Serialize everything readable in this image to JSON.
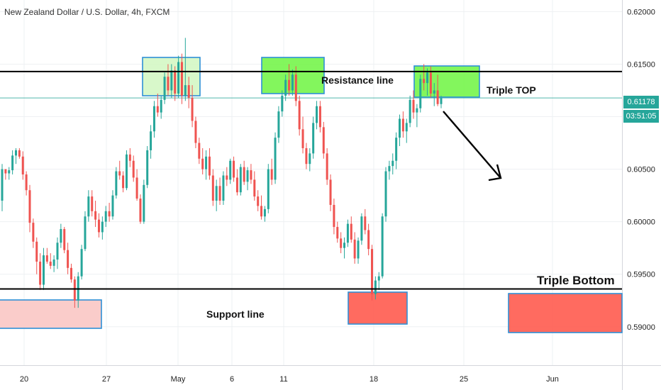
{
  "header": {
    "title": "New Zealand Dollar / U.S. Dollar, 4h, FXCM"
  },
  "price_tag": {
    "value": "0.61178",
    "countdown": "03:51:05"
  },
  "annotations": {
    "resistance": "Resistance line",
    "triple_top": "Triple TOP",
    "triple_bottom": "Triple Bottom",
    "support": "Support line"
  },
  "colors": {
    "up": "#26a69a",
    "down": "#ef5350",
    "grid": "#eef0f3",
    "green_box": "#76f54b",
    "light_green_box": "#d4f7c4",
    "red_box": "#ff5b4f",
    "pink_box": "#f9c7c4",
    "box_border": "#2e8fd6"
  },
  "chart_data": {
    "type": "candlestick",
    "title": "New Zealand Dollar / U.S. Dollar, 4h, FXCM",
    "ylim": [
      0.5885,
      0.6205
    ],
    "y_ticks": [
      "0.62000",
      "0.61500",
      "0.61000",
      "0.60500",
      "0.60000",
      "0.59500",
      "0.59000"
    ],
    "x_ticks": [
      "20",
      "27",
      "May",
      "6",
      "11",
      "18",
      "25",
      "Jun"
    ],
    "resistance_level": 0.6143,
    "support_level": 0.5936,
    "last_price": 0.61178,
    "candles": [
      [
        0.602,
        0.6055,
        0.601,
        0.605
      ],
      [
        0.605,
        0.605,
        0.604,
        0.6046
      ],
      [
        0.6046,
        0.6052,
        0.604,
        0.6049
      ],
      [
        0.6049,
        0.6068,
        0.6045,
        0.6063
      ],
      [
        0.6063,
        0.607,
        0.6055,
        0.6068
      ],
      [
        0.6068,
        0.607,
        0.606,
        0.6062
      ],
      [
        0.6062,
        0.6067,
        0.604,
        0.6045
      ],
      [
        0.6045,
        0.6048,
        0.6025,
        0.603
      ],
      [
        0.603,
        0.6035,
        0.599,
        0.5999
      ],
      [
        0.5999,
        0.6003,
        0.5975,
        0.5981
      ],
      [
        0.5981,
        0.5985,
        0.595,
        0.5962
      ],
      [
        0.5962,
        0.597,
        0.5935,
        0.594
      ],
      [
        0.594,
        0.5975,
        0.5935,
        0.5968
      ],
      [
        0.5968,
        0.5975,
        0.596,
        0.5962
      ],
      [
        0.5962,
        0.597,
        0.5955,
        0.5958
      ],
      [
        0.5958,
        0.5968,
        0.5952,
        0.5964
      ],
      [
        0.5964,
        0.5985,
        0.5955,
        0.598
      ],
      [
        0.598,
        0.5998,
        0.5975,
        0.5993
      ],
      [
        0.5993,
        0.5995,
        0.597,
        0.5973
      ],
      [
        0.5973,
        0.598,
        0.595,
        0.5956
      ],
      [
        0.5956,
        0.596,
        0.5942,
        0.5945
      ],
      [
        0.5945,
        0.5948,
        0.5918,
        0.5925
      ],
      [
        0.5925,
        0.5952,
        0.5918,
        0.5948
      ],
      [
        0.5948,
        0.5978,
        0.5945,
        0.5974
      ],
      [
        0.5974,
        0.601,
        0.5972,
        0.6005
      ],
      [
        0.6005,
        0.603,
        0.6,
        0.6024
      ],
      [
        0.6024,
        0.603,
        0.6005,
        0.601
      ],
      [
        0.601,
        0.602,
        0.5995,
        0.6002
      ],
      [
        0.6002,
        0.6008,
        0.5985,
        0.599
      ],
      [
        0.599,
        0.6005,
        0.5983,
        0.6
      ],
      [
        0.6,
        0.6015,
        0.5995,
        0.601
      ],
      [
        0.601,
        0.6018,
        0.6,
        0.6005
      ],
      [
        0.6005,
        0.603,
        0.6002,
        0.6025
      ],
      [
        0.6025,
        0.6052,
        0.6022,
        0.6048
      ],
      [
        0.6048,
        0.6058,
        0.604,
        0.6044
      ],
      [
        0.6044,
        0.6048,
        0.6028,
        0.6032
      ],
      [
        0.6032,
        0.6068,
        0.603,
        0.6064
      ],
      [
        0.6064,
        0.607,
        0.6052,
        0.6058
      ],
      [
        0.6058,
        0.6063,
        0.6038,
        0.6042
      ],
      [
        0.6042,
        0.605,
        0.602,
        0.6022
      ],
      [
        0.6022,
        0.6026,
        0.5998,
        0.6
      ],
      [
        0.6,
        0.604,
        0.5998,
        0.6035
      ],
      [
        0.6035,
        0.6072,
        0.6032,
        0.6068
      ],
      [
        0.6068,
        0.6092,
        0.606,
        0.6086
      ],
      [
        0.6086,
        0.6115,
        0.608,
        0.611
      ],
      [
        0.611,
        0.6122,
        0.61,
        0.6104
      ],
      [
        0.6104,
        0.612,
        0.6098,
        0.6116
      ],
      [
        0.6116,
        0.6142,
        0.6112,
        0.6138
      ],
      [
        0.6138,
        0.615,
        0.612,
        0.6125
      ],
      [
        0.6125,
        0.615,
        0.6118,
        0.6144
      ],
      [
        0.6144,
        0.6148,
        0.6115,
        0.6122
      ],
      [
        0.6122,
        0.6158,
        0.6118,
        0.6152
      ],
      [
        0.6152,
        0.616,
        0.6112,
        0.612
      ],
      [
        0.612,
        0.6175,
        0.6115,
        0.613
      ],
      [
        0.613,
        0.6138,
        0.6108,
        0.6118
      ],
      [
        0.6118,
        0.613,
        0.609,
        0.6096
      ],
      [
        0.6096,
        0.61,
        0.607,
        0.6075
      ],
      [
        0.6075,
        0.608,
        0.6055,
        0.606
      ],
      [
        0.606,
        0.607,
        0.6045,
        0.605
      ],
      [
        0.605,
        0.6068,
        0.604,
        0.6062
      ],
      [
        0.6062,
        0.607,
        0.604,
        0.6044
      ],
      [
        0.6044,
        0.605,
        0.6015,
        0.602
      ],
      [
        0.602,
        0.604,
        0.601,
        0.6034
      ],
      [
        0.6034,
        0.6042,
        0.6016,
        0.602
      ],
      [
        0.602,
        0.6048,
        0.6016,
        0.6044
      ],
      [
        0.6044,
        0.6052,
        0.6034,
        0.604
      ],
      [
        0.604,
        0.606,
        0.6036,
        0.6058
      ],
      [
        0.6058,
        0.6062,
        0.6038,
        0.6042
      ],
      [
        0.6042,
        0.605,
        0.6025,
        0.6028
      ],
      [
        0.6028,
        0.6055,
        0.6025,
        0.6052
      ],
      [
        0.6052,
        0.6058,
        0.6035,
        0.6038
      ],
      [
        0.6038,
        0.6052,
        0.603,
        0.6049
      ],
      [
        0.6049,
        0.6055,
        0.6036,
        0.604
      ],
      [
        0.604,
        0.6048,
        0.602,
        0.6024
      ],
      [
        0.6024,
        0.603,
        0.601,
        0.6015
      ],
      [
        0.6015,
        0.6025,
        0.6002,
        0.6005
      ],
      [
        0.6005,
        0.6015,
        0.6,
        0.6012
      ],
      [
        0.6012,
        0.6055,
        0.6008,
        0.605
      ],
      [
        0.605,
        0.606,
        0.6035,
        0.604
      ],
      [
        0.604,
        0.6085,
        0.6036,
        0.608
      ],
      [
        0.608,
        0.611,
        0.6075,
        0.6105
      ],
      [
        0.6105,
        0.6125,
        0.61,
        0.612
      ],
      [
        0.612,
        0.614,
        0.6115,
        0.6135
      ],
      [
        0.6135,
        0.615,
        0.612,
        0.6125
      ],
      [
        0.6125,
        0.6145,
        0.612,
        0.614
      ],
      [
        0.614,
        0.6148,
        0.611,
        0.6115
      ],
      [
        0.6115,
        0.612,
        0.6082,
        0.6088
      ],
      [
        0.6088,
        0.61,
        0.6065,
        0.607
      ],
      [
        0.607,
        0.6075,
        0.605,
        0.6055
      ],
      [
        0.6055,
        0.607,
        0.6048,
        0.6065
      ],
      [
        0.6065,
        0.61,
        0.606,
        0.6094
      ],
      [
        0.6094,
        0.6115,
        0.6088,
        0.611
      ],
      [
        0.611,
        0.6115,
        0.6085,
        0.609
      ],
      [
        0.609,
        0.6095,
        0.606,
        0.6065
      ],
      [
        0.6065,
        0.607,
        0.6035,
        0.604
      ],
      [
        0.604,
        0.6045,
        0.601,
        0.6016
      ],
      [
        0.6016,
        0.6022,
        0.5988,
        0.5995
      ],
      [
        0.5995,
        0.6,
        0.598,
        0.5984
      ],
      [
        0.5984,
        0.599,
        0.597,
        0.5975
      ],
      [
        0.5975,
        0.5985,
        0.5965,
        0.598
      ],
      [
        0.598,
        0.6002,
        0.5976,
        0.5998
      ],
      [
        0.5998,
        0.6005,
        0.598,
        0.5983
      ],
      [
        0.5983,
        0.599,
        0.596,
        0.5965
      ],
      [
        0.5965,
        0.5985,
        0.596,
        0.5982
      ],
      [
        0.5982,
        0.6008,
        0.5978,
        0.6005
      ],
      [
        0.6005,
        0.6012,
        0.5988,
        0.5992
      ],
      [
        0.5992,
        0.5998,
        0.5968,
        0.5974
      ],
      [
        0.5974,
        0.5978,
        0.5925,
        0.5931
      ],
      [
        0.5931,
        0.5948,
        0.5926,
        0.5944
      ],
      [
        0.5944,
        0.5952,
        0.5935,
        0.5948
      ],
      [
        0.5948,
        0.6008,
        0.5946,
        0.6005
      ],
      [
        0.6005,
        0.6052,
        0.6,
        0.6048
      ],
      [
        0.6048,
        0.6058,
        0.604,
        0.6053
      ],
      [
        0.6053,
        0.6065,
        0.6045,
        0.6058
      ],
      [
        0.6058,
        0.6085,
        0.605,
        0.608
      ],
      [
        0.608,
        0.6102,
        0.6072,
        0.6098
      ],
      [
        0.6098,
        0.6105,
        0.608,
        0.6086
      ],
      [
        0.6086,
        0.6098,
        0.6075,
        0.6094
      ],
      [
        0.6094,
        0.612,
        0.609,
        0.6116
      ],
      [
        0.6116,
        0.6125,
        0.6098,
        0.6104
      ],
      [
        0.6104,
        0.6112,
        0.609,
        0.6108
      ],
      [
        0.6108,
        0.614,
        0.6104,
        0.6136
      ],
      [
        0.6136,
        0.615,
        0.6125,
        0.6132
      ],
      [
        0.6132,
        0.6146,
        0.612,
        0.6142
      ],
      [
        0.6142,
        0.6148,
        0.6118,
        0.6122
      ],
      [
        0.6122,
        0.6132,
        0.611,
        0.6125
      ],
      [
        0.6125,
        0.614,
        0.611,
        0.6112
      ],
      [
        0.6112,
        0.612,
        0.6108,
        0.61178
      ]
    ]
  }
}
